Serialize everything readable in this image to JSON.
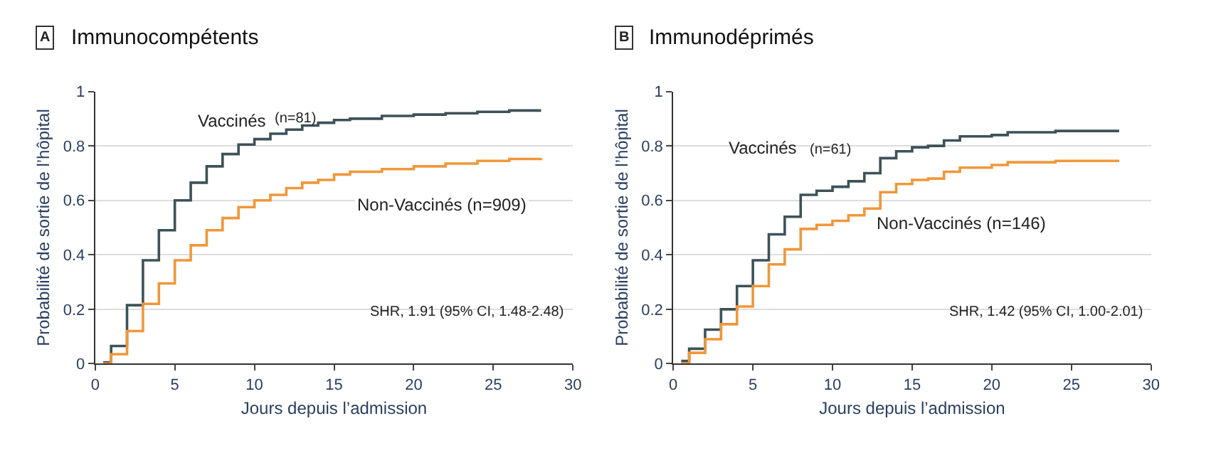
{
  "chart_data": [
    {
      "type": "step",
      "title": "Immunocompétents",
      "xlabel": "Jours depuis l’admission",
      "ylabel": "Probabilité de sortie de l’hôpital",
      "annotations": [
        "A",
        "(n=81)",
        "SHR, 1.91 (95% CI, 1.48-2.48)"
      ],
      "x": [
        0.5,
        1,
        2,
        3,
        4,
        5,
        6,
        7,
        8,
        9,
        10,
        11,
        12,
        13,
        14,
        15,
        16,
        18,
        20,
        22,
        24,
        26,
        28
      ],
      "series": [
        {
          "name": "Vaccinés",
          "color": "#3d5158",
          "values": [
            0.005,
            0.065,
            0.215,
            0.38,
            0.49,
            0.6,
            0.665,
            0.725,
            0.77,
            0.805,
            0.825,
            0.845,
            0.86,
            0.875,
            0.885,
            0.895,
            0.9,
            0.91,
            0.915,
            0.92,
            0.925,
            0.93,
            0.93
          ]
        },
        {
          "name": "Non-Vaccinés (n=909)",
          "color": "#f0973a",
          "values": [
            0,
            0.035,
            0.12,
            0.22,
            0.295,
            0.38,
            0.435,
            0.49,
            0.535,
            0.575,
            0.6,
            0.62,
            0.645,
            0.665,
            0.675,
            0.695,
            0.705,
            0.715,
            0.725,
            0.735,
            0.745,
            0.752,
            0.755
          ]
        }
      ],
      "xlim": [
        0,
        30
      ],
      "xticks": [
        0,
        5,
        10,
        15,
        20,
        25,
        30
      ],
      "ylim": [
        0,
        1
      ],
      "yticks": [
        0,
        0.2,
        0.4,
        0.6,
        0.8,
        1
      ],
      "grid": "y",
      "legend": false
    },
    {
      "type": "step",
      "title": "Immunodéprimés",
      "xlabel": "Jours depuis l’admission",
      "ylabel": "Probabilité de sortie de l’hôpital",
      "annotations": [
        "B",
        "(n=61)",
        "SHR, 1.42 (95% CI, 1.00-2.01)"
      ],
      "x": [
        0.5,
        1,
        2,
        3,
        4,
        5,
        6,
        7,
        8,
        9,
        10,
        11,
        12,
        13,
        14,
        15,
        16,
        17,
        18,
        20,
        21,
        24,
        28
      ],
      "series": [
        {
          "name": "Vaccinés",
          "color": "#3d5158",
          "values": [
            0.01,
            0.055,
            0.125,
            0.2,
            0.285,
            0.38,
            0.475,
            0.54,
            0.62,
            0.635,
            0.65,
            0.67,
            0.7,
            0.755,
            0.78,
            0.795,
            0.8,
            0.82,
            0.835,
            0.84,
            0.85,
            0.855,
            0.855
          ]
        },
        {
          "name": "Non-Vaccinés (n=146)",
          "color": "#f0973a",
          "values": [
            0,
            0.04,
            0.09,
            0.145,
            0.21,
            0.285,
            0.365,
            0.42,
            0.495,
            0.51,
            0.525,
            0.545,
            0.57,
            0.63,
            0.66,
            0.675,
            0.68,
            0.705,
            0.72,
            0.73,
            0.74,
            0.745,
            0.745
          ]
        }
      ],
      "xlim": [
        0,
        30
      ],
      "xticks": [
        0,
        5,
        10,
        15,
        20,
        25,
        30
      ],
      "ylim": [
        0,
        1
      ],
      "yticks": [
        0,
        0.2,
        0.4,
        0.6,
        0.8,
        1
      ],
      "grid": "y",
      "legend": false
    }
  ]
}
